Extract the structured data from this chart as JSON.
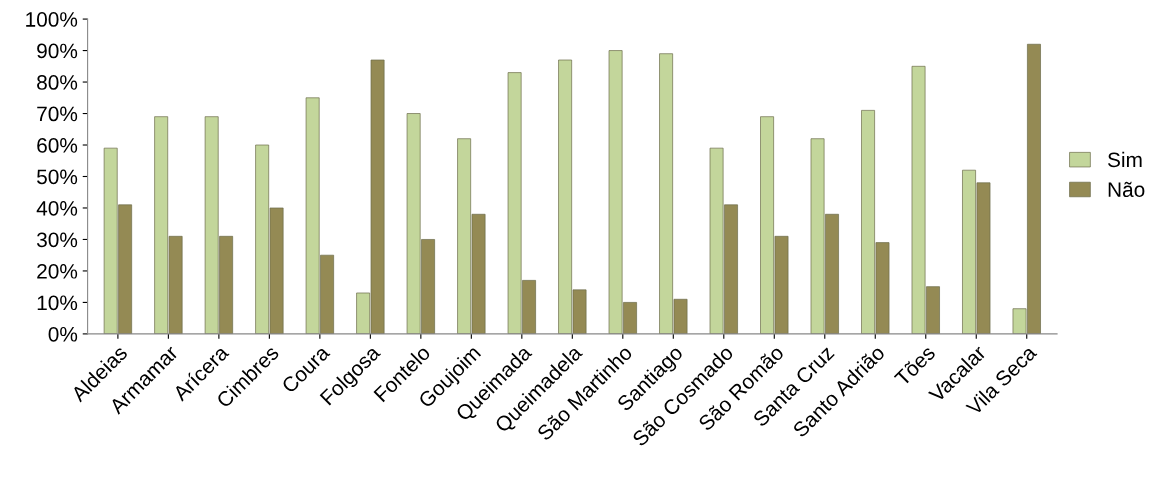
{
  "chart_data": {
    "type": "bar",
    "categories": [
      "Aldeias",
      "Armamar",
      "Arícera",
      "Cimbres",
      "Coura",
      "Folgosa",
      "Fontelo",
      "Goujoim",
      "Queimada",
      "Queimadela",
      "São Martinho",
      "Santiago",
      "São Cosmado",
      "São Romão",
      "Santa Cruz",
      "Santo Adrião",
      "Tões",
      "Vacalar",
      "Vila Seca"
    ],
    "series": [
      {
        "name": "Sim",
        "color": "#c3d69b",
        "values": [
          59,
          69,
          69,
          60,
          75,
          13,
          70,
          62,
          83,
          87,
          90,
          89,
          59,
          69,
          62,
          71,
          85,
          52,
          8
        ]
      },
      {
        "name": "Não",
        "color": "#948a54",
        "values": [
          41,
          31,
          31,
          40,
          25,
          87,
          30,
          38,
          17,
          14,
          10,
          11,
          41,
          31,
          38,
          29,
          15,
          48,
          92
        ]
      }
    ],
    "ylim": [
      0,
      100
    ],
    "yticks": [
      {
        "value": 0,
        "label": "0%"
      },
      {
        "value": 10,
        "label": "10%"
      },
      {
        "value": 20,
        "label": "20%"
      },
      {
        "value": 30,
        "label": "30%"
      },
      {
        "value": 40,
        "label": "40%"
      },
      {
        "value": 50,
        "label": "50%"
      },
      {
        "value": 60,
        "label": "60%"
      },
      {
        "value": 70,
        "label": "70%"
      },
      {
        "value": 80,
        "label": "80%"
      },
      {
        "value": 90,
        "label": "90%"
      },
      {
        "value": 100,
        "label": "100%"
      }
    ],
    "grid": false,
    "legend": "right"
  }
}
